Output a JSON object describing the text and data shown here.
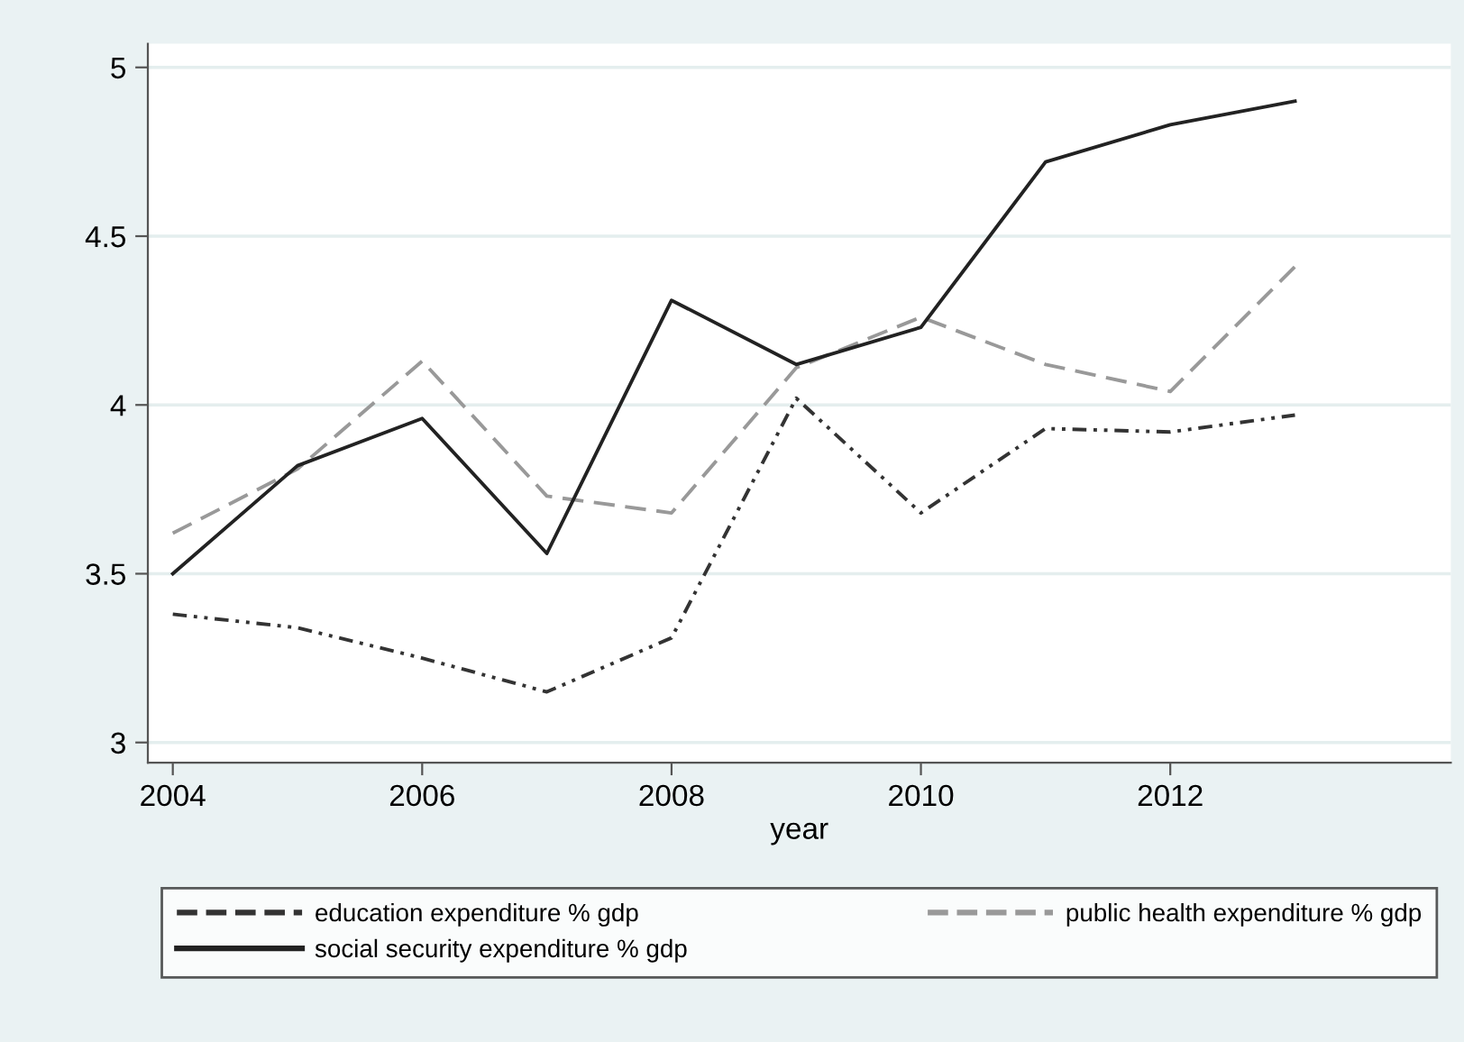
{
  "chart_data": {
    "type": "line",
    "xlabel": "year",
    "x": [
      2004,
      2005,
      2006,
      2007,
      2008,
      2009,
      2010,
      2011,
      2012,
      2013
    ],
    "series": [
      {
        "name": "education expenditure % gdp",
        "color": "#333333",
        "line_style": "dashdotdot",
        "values": [
          3.38,
          3.34,
          3.25,
          3.15,
          3.31,
          4.02,
          3.68,
          3.93,
          3.92,
          3.97
        ]
      },
      {
        "name": "public health expenditure % gdp",
        "color": "#999999",
        "line_style": "dashed",
        "values": [
          3.62,
          3.81,
          4.13,
          3.73,
          3.68,
          4.11,
          4.26,
          4.12,
          4.04,
          4.41
        ]
      },
      {
        "name": "social security expenditure % gdp",
        "color": "#222222",
        "line_style": "solid",
        "values": [
          3.5,
          3.82,
          3.96,
          3.56,
          4.31,
          4.12,
          4.23,
          4.72,
          4.83,
          4.9
        ]
      }
    ],
    "xlim": [
      2003.8,
      2014.25
    ],
    "xticks": [
      2004,
      2006,
      2008,
      2010,
      2012
    ],
    "ylim": [
      2.94,
      5.07
    ],
    "yticks": [
      3,
      3.5,
      4,
      4.5,
      5
    ],
    "grid": "y",
    "legend": "bottom",
    "marker": "none"
  }
}
